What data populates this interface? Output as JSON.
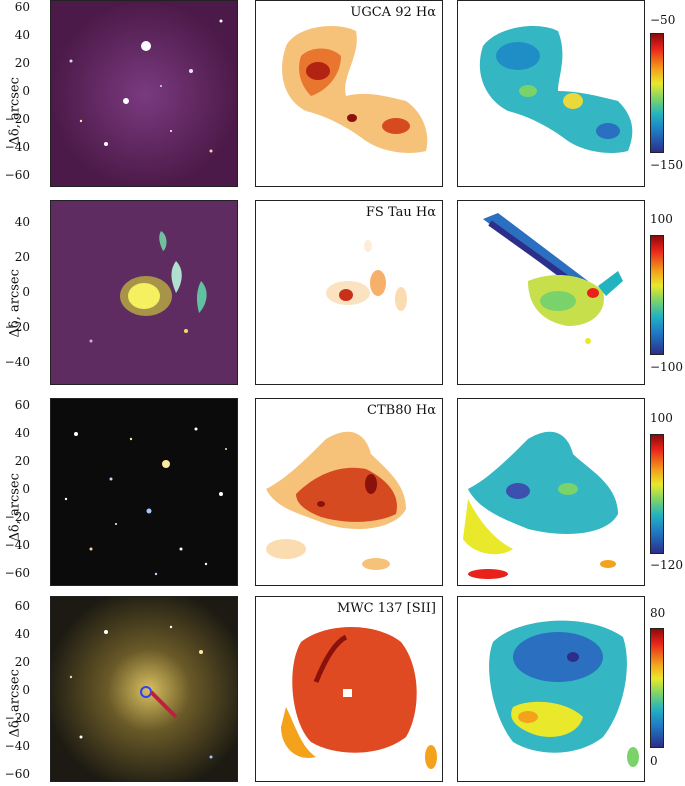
{
  "rows": [
    {
      "title": "UGCA 92 Hα",
      "y_ticks": [
        "60",
        "40",
        "20",
        "0",
        "−20",
        "−40",
        "−60"
      ],
      "ylabel": "Δδ, arcsec",
      "cbar_top": "−50",
      "cbar_bottom": "−150",
      "image_colors": [
        "#5a2050",
        "#6b2a60"
      ]
    },
    {
      "title": "FS Tau Hα",
      "y_ticks": [
        "40",
        "20",
        "0",
        "−20",
        "−40"
      ],
      "ylabel": "Δδ, arcsec",
      "cbar_top": "100",
      "cbar_bottom": "−100",
      "image_colors": [
        "#5e2c60",
        "#6b3770"
      ]
    },
    {
      "title": "CTB80 Hα",
      "y_ticks": [
        "60",
        "40",
        "20",
        "0",
        "−20",
        "−40",
        "−60"
      ],
      "ylabel": "Δδ, arcsec",
      "cbar_top": "100",
      "cbar_bottom": "−120",
      "image_colors": [
        "#0b0b0b",
        "#151515"
      ]
    },
    {
      "title": "MWC 137 [SII]",
      "y_ticks": [
        "60",
        "40",
        "20",
        "0",
        "−20",
        "−40",
        "−60"
      ],
      "ylabel": "Δδ, arcsec",
      "cbar_top": "80",
      "cbar_bottom": "0",
      "image_colors": [
        "#1c1a12",
        "#3a3418"
      ]
    }
  ]
}
